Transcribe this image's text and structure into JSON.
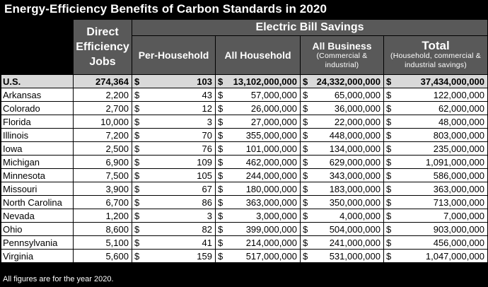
{
  "title": "Energy-Efficiency Benefits of Carbon Standards in 2020",
  "header": {
    "direct_jobs": "Direct Efficiency Jobs",
    "bill_savings": "Electric Bill Savings",
    "per_household": "Per-Household",
    "all_household": "All Household",
    "all_business": "All Business",
    "all_business_sub": "(Commercial & industrial)",
    "total": "Total",
    "total_sub": "(Household, commercial & industrial savings)"
  },
  "currency": "$",
  "rows": [
    {
      "state": "U.S.",
      "jobs": "274,364",
      "per_household": "103",
      "all_household": "13,102,000,000",
      "all_business": "24,332,000,000",
      "total": "37,434,000,000"
    },
    {
      "state": "Arkansas",
      "jobs": "2,200",
      "per_household": "43",
      "all_household": "57,000,000",
      "all_business": "65,000,000",
      "total": "122,000,000"
    },
    {
      "state": "Colorado",
      "jobs": "2,700",
      "per_household": "12",
      "all_household": "26,000,000",
      "all_business": "36,000,000",
      "total": "62,000,000"
    },
    {
      "state": "Florida",
      "jobs": "10,000",
      "per_household": "3",
      "all_household": "27,000,000",
      "all_business": "22,000,000",
      "total": "48,000,000"
    },
    {
      "state": "Illinois",
      "jobs": "7,200",
      "per_household": "70",
      "all_household": "355,000,000",
      "all_business": "448,000,000",
      "total": "803,000,000"
    },
    {
      "state": "Iowa",
      "jobs": "2,500",
      "per_household": "76",
      "all_household": "101,000,000",
      "all_business": "134,000,000",
      "total": "235,000,000"
    },
    {
      "state": "Michigan",
      "jobs": "6,900",
      "per_household": "109",
      "all_household": "462,000,000",
      "all_business": "629,000,000",
      "total": "1,091,000,000"
    },
    {
      "state": "Minnesota",
      "jobs": "7,500",
      "per_household": "105",
      "all_household": "244,000,000",
      "all_business": "343,000,000",
      "total": "586,000,000"
    },
    {
      "state": "Missouri",
      "jobs": "3,900",
      "per_household": "67",
      "all_household": "180,000,000",
      "all_business": "183,000,000",
      "total": "363,000,000"
    },
    {
      "state": "North Carolina",
      "jobs": "6,700",
      "per_household": "86",
      "all_household": "363,000,000",
      "all_business": "350,000,000",
      "total": "713,000,000"
    },
    {
      "state": "Nevada",
      "jobs": "1,200",
      "per_household": "3",
      "all_household": "3,000,000",
      "all_business": "4,000,000",
      "total": "7,000,000"
    },
    {
      "state": "Ohio",
      "jobs": "8,600",
      "per_household": "82",
      "all_household": "399,000,000",
      "all_business": "504,000,000",
      "total": "903,000,000"
    },
    {
      "state": "Pennsylvania",
      "jobs": "5,100",
      "per_household": "41",
      "all_household": "214,000,000",
      "all_business": "241,000,000",
      "total": "456,000,000"
    },
    {
      "state": "Virginia",
      "jobs": "5,600",
      "per_household": "159",
      "all_household": "517,000,000",
      "all_business": "531,000,000",
      "total": "1,047,000,000"
    }
  ],
  "footer": "All figures are for the year 2020.",
  "colors": {
    "background": "#000000",
    "header_fill": "#595959",
    "us_row_fill": "#d9d9d9"
  }
}
